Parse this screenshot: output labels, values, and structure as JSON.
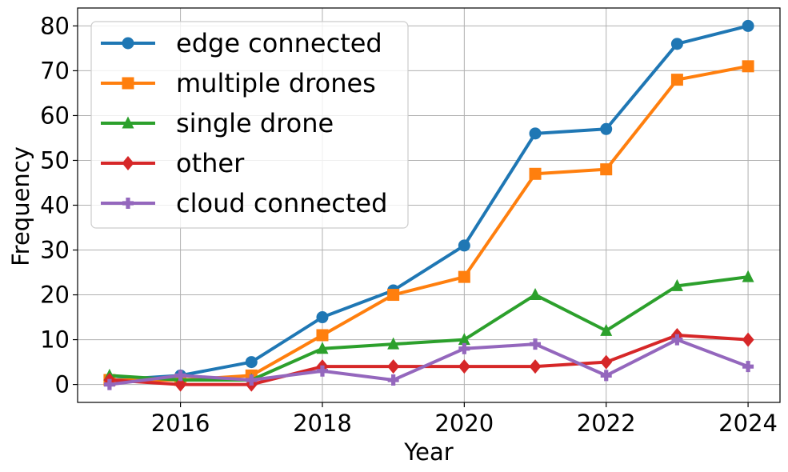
{
  "chart_data": {
    "type": "line",
    "title": "",
    "xlabel": "Year",
    "ylabel": "Frequency",
    "x": [
      2015,
      2016,
      2017,
      2018,
      2019,
      2020,
      2021,
      2022,
      2023,
      2024
    ],
    "xlim": [
      2014.55,
      2024.45
    ],
    "ylim": [
      -4,
      84
    ],
    "xticks": [
      2016,
      2018,
      2020,
      2022,
      2024
    ],
    "xtick_labels": [
      "2016",
      "2018",
      "2020",
      "2022",
      "2024"
    ],
    "yticks": [
      0,
      10,
      20,
      30,
      40,
      50,
      60,
      70,
      80
    ],
    "ytick_labels": [
      "0",
      "10",
      "20",
      "30",
      "40",
      "50",
      "60",
      "70",
      "80"
    ],
    "grid": true,
    "legend_position": "top-left",
    "series": [
      {
        "name": "edge connected",
        "color": "#1f77b4",
        "marker": "circle",
        "values": [
          1,
          2,
          5,
          15,
          21,
          31,
          56,
          57,
          76,
          80
        ]
      },
      {
        "name": "multiple drones",
        "color": "#ff7f0e",
        "marker": "square",
        "values": [
          1,
          1,
          2,
          11,
          20,
          24,
          47,
          48,
          68,
          71
        ]
      },
      {
        "name": "single drone",
        "color": "#2ca02c",
        "marker": "triangle",
        "values": [
          2,
          1,
          1,
          8,
          9,
          10,
          20,
          12,
          22,
          24
        ]
      },
      {
        "name": "other",
        "color": "#d62728",
        "marker": "diamond",
        "values": [
          1,
          0,
          0,
          4,
          4,
          4,
          4,
          5,
          11,
          10
        ]
      },
      {
        "name": "cloud connected",
        "color": "#9467bd",
        "marker": "plus",
        "values": [
          0,
          2,
          1,
          3,
          1,
          8,
          9,
          2,
          10,
          4
        ]
      }
    ]
  }
}
